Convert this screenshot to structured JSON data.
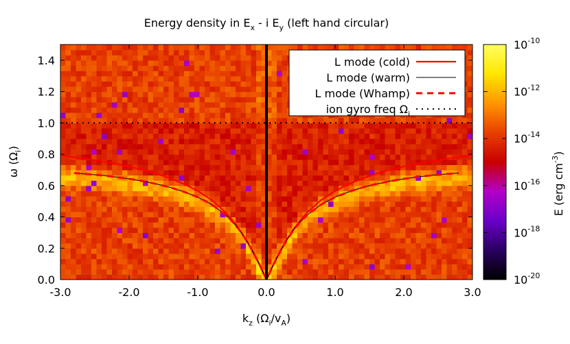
{
  "chart_data": {
    "type": "heatmap",
    "title": {
      "main": "Energy density in E",
      "sub1": "x",
      "mid": " - i E",
      "sub2": "y",
      "tail": " (left hand circular)"
    },
    "xlabel": {
      "pre": "k",
      "sub1": "z",
      "mid": " (Ω",
      "sub2": "i",
      "mid2": "/v",
      "sub3": "A",
      "tail": ")"
    },
    "ylabel": {
      "pre": "ω (Ω",
      "sub": "i",
      "tail": ")"
    },
    "colorbar_label": {
      "pre": "E (erg cm",
      "sup": "-3",
      "tail": ")"
    },
    "xlim": [
      -3.0,
      3.0
    ],
    "ylim": [
      0.0,
      1.5
    ],
    "x_ticks": [
      -3.0,
      -2.0,
      -1.0,
      0.0,
      1.0,
      2.0,
      3.0
    ],
    "x_tick_labels": [
      "-3.0",
      "-2.0",
      "-1.0",
      "0.0",
      "1.0",
      "2.0",
      "3.0"
    ],
    "y_ticks": [
      0.0,
      0.2,
      0.4,
      0.6,
      0.8,
      1.0,
      1.2,
      1.4
    ],
    "y_tick_labels": [
      "0.0",
      "0.2",
      "0.4",
      "0.6",
      "0.8",
      "1.0",
      "1.2",
      "1.4"
    ],
    "colorbar": {
      "scale": "log",
      "range": [
        1e-20,
        1e-10
      ],
      "tick_exponents": [
        -10,
        -12,
        -14,
        -16,
        -18,
        -20
      ],
      "tick_base": "10",
      "palette": [
        "#000000",
        "#2a0060",
        "#6a00c8",
        "#b400c8",
        "#c80000",
        "#e84000",
        "#ff9600",
        "#ffe600",
        "#ffff60"
      ]
    },
    "legend": {
      "placement": "top-right",
      "entries": [
        {
          "label": "L mode (cold)",
          "style": "solid-thick",
          "color": "#ff0000"
        },
        {
          "label": "L mode (warm)",
          "style": "solid-thin",
          "color": "#000000"
        },
        {
          "label": "L mode (Whamp)",
          "style": "dashed-thick",
          "color": "#ff0000"
        },
        {
          "label": "ion gyro freq Ω",
          "label_sub": "i",
          "style": "dotted",
          "color": "#000000"
        }
      ]
    },
    "series": [
      {
        "name": "L mode (cold)",
        "x": [
          0.0,
          0.1,
          0.2,
          0.3,
          0.4,
          0.5,
          0.6,
          0.8,
          1.0,
          1.2,
          1.4,
          1.6,
          1.8,
          2.0,
          2.2,
          2.4,
          2.6,
          2.8,
          3.0
        ],
        "y": [
          0.0,
          0.095,
          0.181,
          0.258,
          0.325,
          0.382,
          0.431,
          0.509,
          0.566,
          0.61,
          0.646,
          0.676,
          0.701,
          0.721,
          0.74,
          0.755,
          0.769,
          0.781,
          0.795
        ],
        "mirror": true
      },
      {
        "name": "L mode (warm)",
        "x": [
          0.0,
          0.1,
          0.2,
          0.3,
          0.4,
          0.5,
          0.6,
          0.8,
          1.0,
          1.2,
          1.4,
          1.6,
          1.8,
          2.0,
          2.2,
          2.4,
          2.6,
          2.8
        ],
        "y": [
          0.0,
          0.095,
          0.18,
          0.256,
          0.32,
          0.372,
          0.415,
          0.48,
          0.526,
          0.56,
          0.588,
          0.61,
          0.628,
          0.643,
          0.655,
          0.665,
          0.673,
          0.68
        ],
        "mirror": true
      },
      {
        "name": "L mode (Whamp)",
        "x": [
          0.0,
          0.1,
          0.2,
          0.3,
          0.4,
          0.5,
          0.6,
          0.8,
          1.0,
          1.2,
          1.4,
          1.6,
          1.8,
          2.0,
          2.2,
          2.4,
          2.6,
          2.8
        ],
        "y": [
          0.0,
          0.095,
          0.18,
          0.256,
          0.32,
          0.372,
          0.415,
          0.48,
          0.526,
          0.56,
          0.588,
          0.61,
          0.628,
          0.643,
          0.655,
          0.665,
          0.673,
          0.68
        ],
        "mirror": true
      },
      {
        "name": "ion gyro freq Ωi",
        "x": [
          -3.0,
          3.0
        ],
        "y": [
          1.0,
          1.0
        ]
      }
    ],
    "vertical_line": {
      "x": 0.0,
      "color": "#000000"
    },
    "grid": false
  }
}
